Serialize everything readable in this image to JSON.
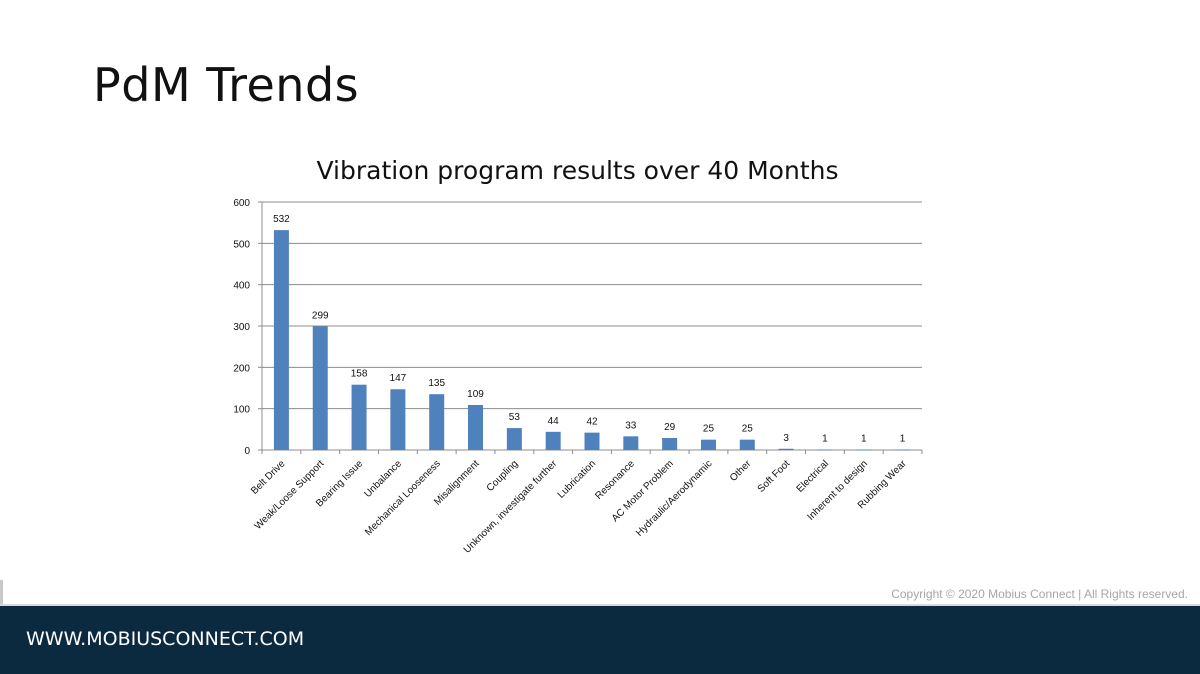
{
  "slide": {
    "title": "PdM Trends",
    "copyright": "Copyright © 2020 Mobius Connect | All Rights reserved.",
    "footer_url": "WWW.MOBIUSCONNECT.COM"
  },
  "colors": {
    "bar": "#4f81bd",
    "footer": "#0b2a40",
    "grid": "#8c8c8c"
  },
  "chart_data": {
    "type": "bar",
    "title": "Vibration program results over 40 Months",
    "xlabel": "",
    "ylabel": "",
    "ylim": [
      0,
      600
    ],
    "yticks": [
      0,
      100,
      200,
      300,
      400,
      500,
      600
    ],
    "grid": true,
    "legend": "none",
    "categories": [
      "Belt Drive",
      "Weak/Loose Support",
      "Bearing Issue",
      "Unbalance",
      "Mechanical Looseness",
      "Misalignment",
      "Coupling",
      "Unknown, investigate further",
      "Lubrication",
      "Resonance",
      "AC Motor Problem",
      "Hydraulic/Aerodynamic",
      "Other",
      "Soft Foot",
      "Electrical",
      "Inherent to design",
      "Rubbing Wear"
    ],
    "values": [
      532,
      299,
      158,
      147,
      135,
      109,
      53,
      44,
      42,
      33,
      29,
      25,
      25,
      3,
      1,
      1,
      1
    ]
  }
}
